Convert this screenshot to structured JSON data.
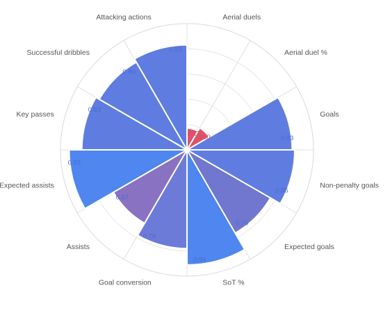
{
  "chart_data": {
    "type": "polar-area",
    "title": "",
    "rlim": [
      0,
      1
    ],
    "grid": true,
    "categories": [
      "Aerial duels",
      "Aerial duel %",
      "Goals",
      "Non-penalty goals",
      "Expected goals",
      "SoT %",
      "Goal conversion",
      "Assists",
      "Expected assists",
      "Key passes",
      "Successful dribbles",
      "Attacking actions"
    ],
    "values": [
      0.17,
      0.2,
      0.83,
      0.85,
      0.76,
      0.91,
      0.78,
      0.67,
      0.93,
      0.83,
      0.8,
      0.83
    ],
    "value_labels": [
      "0.17",
      "0.20",
      "0.83",
      "0.85",
      "0.76",
      "0.91",
      "0.78",
      "0.67",
      "0.93",
      "0.83",
      "0.80",
      "0.83"
    ],
    "colors": [
      "#e0536a",
      "#e0536a",
      "#5f7de0",
      "#5f7de0",
      "#7176cf",
      "#4f86ef",
      "#6d7bd8",
      "#8a72c2",
      "#4f86ef",
      "#5f7de0",
      "#5f7de0",
      "#5f7de0"
    ],
    "label_colors": [
      "#d04b62",
      "#d04b62",
      "#4a6bd0",
      "#4a6bd0",
      "#4a6bd0",
      "#4a6bd0",
      "#4a6bd0",
      "#4a6bd0",
      "#4a6bd0",
      "#4a6bd0",
      "#4a6bd0",
      "#4a6bd0"
    ]
  }
}
